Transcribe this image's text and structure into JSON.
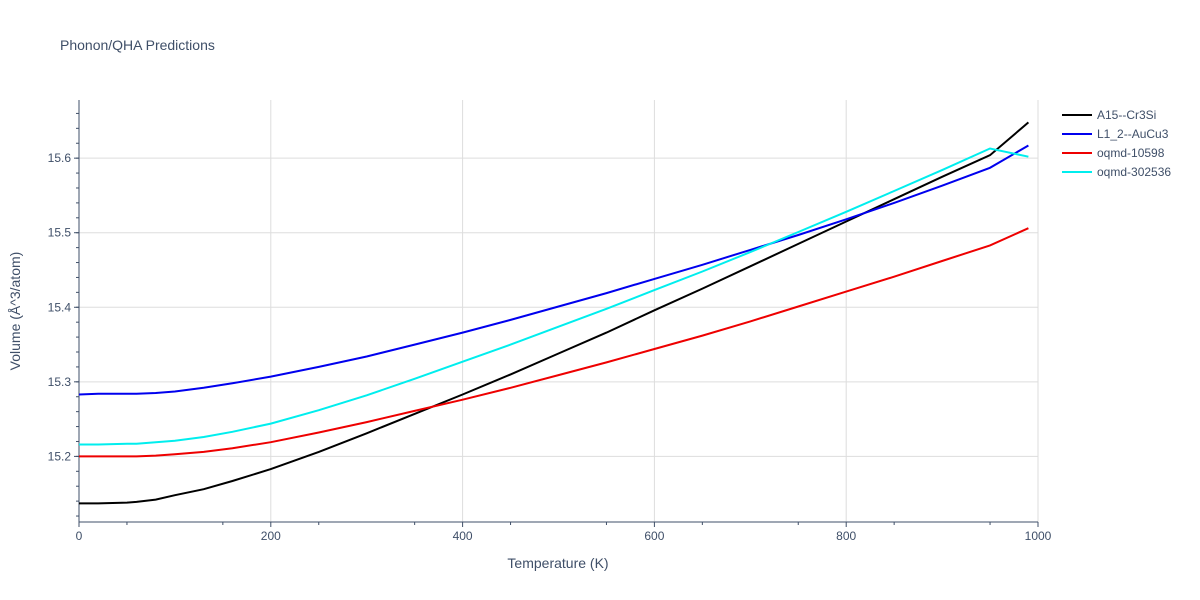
{
  "chart_data": {
    "type": "line",
    "title": "Phonon/QHA Predictions",
    "xlabel": "Temperature (K)",
    "ylabel": "Volume (Å^3/atom)",
    "xlim": [
      0,
      1000
    ],
    "ylim": [
      15.112,
      15.678
    ],
    "xticks": [
      0,
      200,
      400,
      600,
      800,
      1000
    ],
    "xtick_labels": [
      "0",
      "200",
      "400",
      "600",
      "800",
      "1000"
    ],
    "yticks": [
      15.2,
      15.3,
      15.4,
      15.5,
      15.6
    ],
    "ytick_labels": [
      "15.2",
      "15.3",
      "15.4",
      "15.5",
      "15.6"
    ],
    "grid": true,
    "legend_position": "top-right",
    "x": [
      0,
      20,
      50,
      60,
      80,
      100,
      130,
      160,
      200,
      250,
      300,
      350,
      400,
      450,
      500,
      550,
      600,
      650,
      700,
      750,
      800,
      850,
      900,
      950,
      990
    ],
    "series": [
      {
        "name": "A15--Cr3Si",
        "color": "#000000",
        "values": [
          15.137,
          15.137,
          15.138,
          15.139,
          15.142,
          15.148,
          15.156,
          15.167,
          15.183,
          15.206,
          15.231,
          15.257,
          15.283,
          15.31,
          15.338,
          15.366,
          15.396,
          15.425,
          15.455,
          15.485,
          15.515,
          15.545,
          15.575,
          15.604,
          15.648
        ]
      },
      {
        "name": "L1_2--AuCu3",
        "color": "#0000ee",
        "values": [
          15.283,
          15.284,
          15.284,
          15.284,
          15.285,
          15.287,
          15.292,
          15.298,
          15.307,
          15.32,
          15.334,
          15.35,
          15.366,
          15.383,
          15.401,
          15.419,
          15.438,
          15.457,
          15.477,
          15.497,
          15.518,
          15.54,
          15.563,
          15.587,
          15.617
        ]
      },
      {
        "name": "oqmd-10598",
        "color": "#ee0000",
        "values": [
          15.2,
          15.2,
          15.2,
          15.2,
          15.201,
          15.203,
          15.206,
          15.211,
          15.219,
          15.232,
          15.246,
          15.261,
          15.276,
          15.292,
          15.309,
          15.326,
          15.344,
          15.362,
          15.381,
          15.401,
          15.421,
          15.441,
          15.462,
          15.483,
          15.506
        ]
      },
      {
        "name": "oqmd-302536",
        "color": "#00eeee",
        "values": [
          15.216,
          15.216,
          15.217,
          15.217,
          15.219,
          15.221,
          15.226,
          15.233,
          15.244,
          15.262,
          15.282,
          15.304,
          15.327,
          15.35,
          15.374,
          15.398,
          15.423,
          15.448,
          15.474,
          15.501,
          15.528,
          15.556,
          15.584,
          15.613,
          15.602
        ]
      }
    ]
  }
}
